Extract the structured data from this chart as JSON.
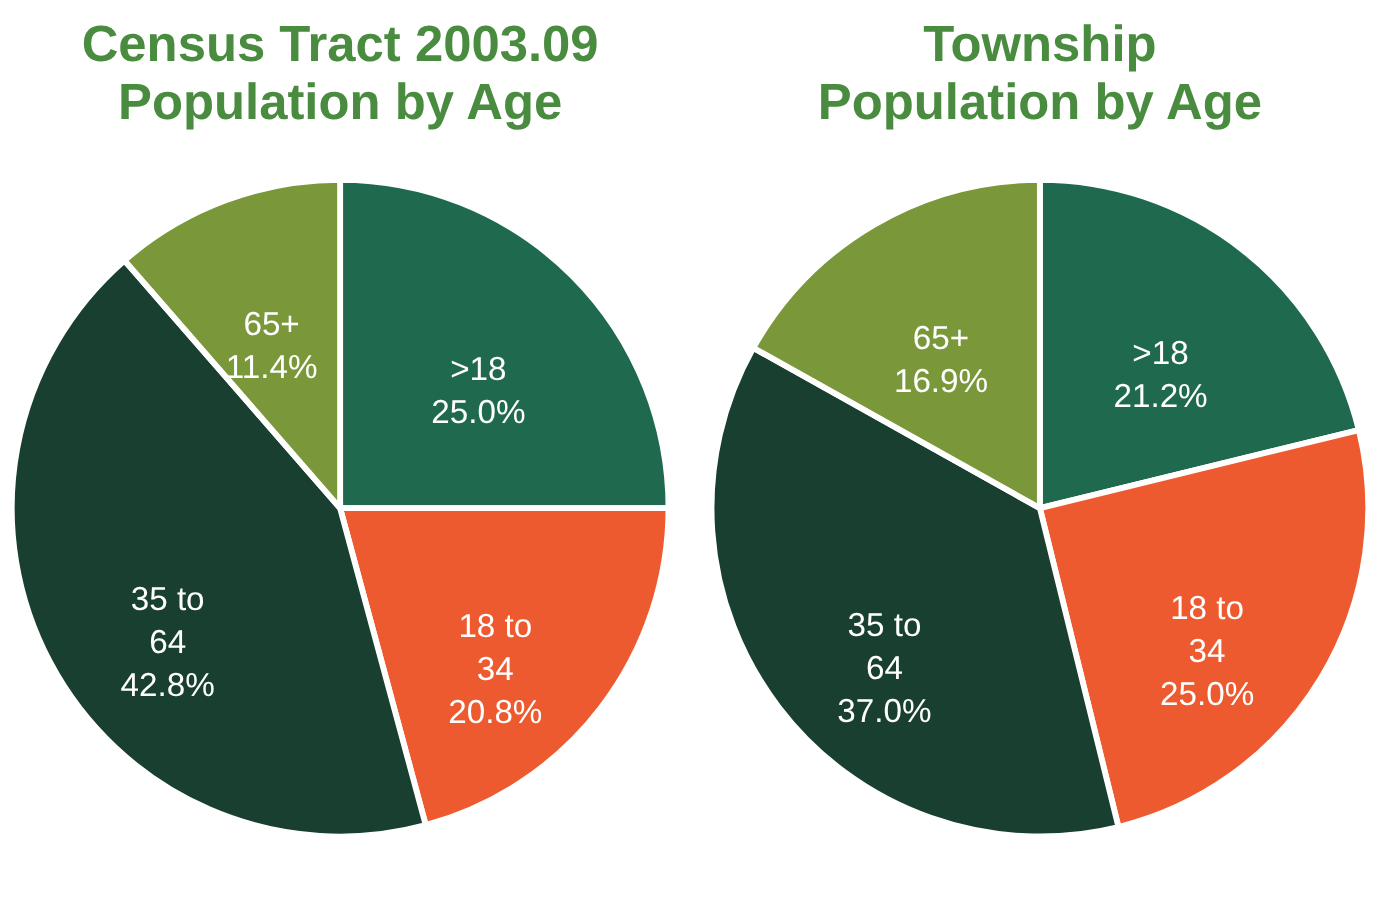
{
  "chart_data": [
    {
      "type": "pie",
      "title": "Census Tract 2003.09",
      "subtitle": "Population by Age",
      "categories": [
        ">18",
        "18 to 34",
        "35 to 64",
        "65+"
      ],
      "values": [
        25.0,
        20.8,
        42.8,
        11.4
      ],
      "colors": [
        "#1f6a4f",
        "#ee5a2f",
        "#183f2f",
        "#7a983a"
      ],
      "value_labels": [
        "25.0%",
        "20.8%",
        "42.8%",
        "11.4%"
      ],
      "legend": false
    },
    {
      "type": "pie",
      "title": "Township",
      "subtitle": "Population by Age",
      "categories": [
        ">18",
        "18 to 34",
        "35 to 64",
        "65+"
      ],
      "values": [
        21.2,
        25.0,
        37.0,
        16.9
      ],
      "colors": [
        "#1f6a4f",
        "#ee5a2f",
        "#183f2f",
        "#7a983a"
      ],
      "value_labels": [
        "21.2%",
        "25.0%",
        "37.0%",
        "16.9%"
      ],
      "legend": false
    }
  ]
}
